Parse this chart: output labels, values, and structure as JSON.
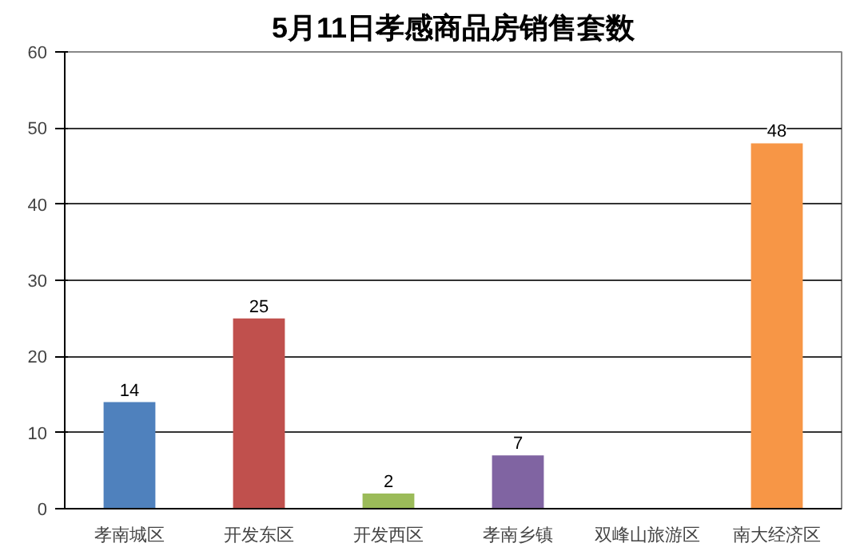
{
  "chart_data": {
    "type": "bar",
    "title": "5月11日孝感商品房销售套数",
    "categories": [
      "孝南城区",
      "开发东区",
      "开发西区",
      "孝南乡镇",
      "双峰山旅游区",
      "南大经济区"
    ],
    "values": [
      14,
      25,
      2,
      7,
      null,
      48
    ],
    "colors": [
      "#4f81bd",
      "#c0504d",
      "#9bbb59",
      "#8064a2",
      "#4bacc6",
      "#f79646"
    ],
    "ylim": [
      0,
      60
    ],
    "yticks": [
      0,
      10,
      20,
      30,
      40,
      50,
      60
    ],
    "grid": "y",
    "data_labels": true
  }
}
